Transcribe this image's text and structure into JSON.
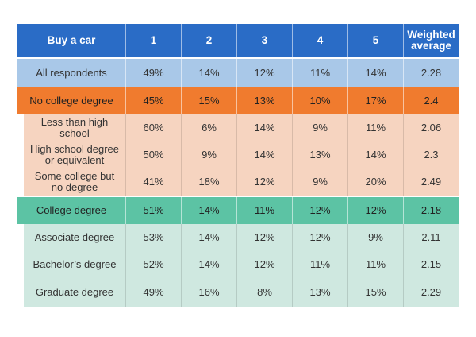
{
  "colors": {
    "header": "#2a6cc6",
    "all_respondents": "#a9c8e8",
    "no_college": "#f07b2e",
    "no_college_sub": "#f6d4c0",
    "college": "#5cc3a4",
    "college_sub": "#cfe8e0"
  },
  "chart_data": {
    "type": "table",
    "columns": [
      "Buy a car",
      "1",
      "2",
      "3",
      "4",
      "5",
      "Weighted average"
    ],
    "rows": [
      {
        "label": "All respondents",
        "values": [
          "49%",
          "14%",
          "12%",
          "11%",
          "14%",
          "2.28"
        ],
        "style": "all_respondents"
      },
      {
        "label": "No college degree",
        "values": [
          "45%",
          "15%",
          "13%",
          "10%",
          "17%",
          "2.4"
        ],
        "style": "no_college"
      },
      {
        "label": "Less than high school",
        "values": [
          "60%",
          "6%",
          "14%",
          "9%",
          "11%",
          "2.06"
        ],
        "style": "no_college_sub"
      },
      {
        "label": "High school degree or equivalent",
        "values": [
          "50%",
          "9%",
          "14%",
          "13%",
          "14%",
          "2.3"
        ],
        "style": "no_college_sub"
      },
      {
        "label": "Some college but no degree",
        "values": [
          "41%",
          "18%",
          "12%",
          "9%",
          "20%",
          "2.49"
        ],
        "style": "no_college_sub"
      },
      {
        "label": "College degree",
        "values": [
          "51%",
          "14%",
          "11%",
          "12%",
          "12%",
          "2.18"
        ],
        "style": "college"
      },
      {
        "label": "Associate degree",
        "values": [
          "53%",
          "14%",
          "12%",
          "12%",
          "9%",
          "2.11"
        ],
        "style": "college_sub"
      },
      {
        "label": "Bachelor’s degree",
        "values": [
          "52%",
          "14%",
          "12%",
          "11%",
          "11%",
          "2.15"
        ],
        "style": "college_sub"
      },
      {
        "label": "Graduate degree",
        "values": [
          "49%",
          "16%",
          "8%",
          "13%",
          "15%",
          "2.29"
        ],
        "style": "college_sub"
      }
    ]
  }
}
